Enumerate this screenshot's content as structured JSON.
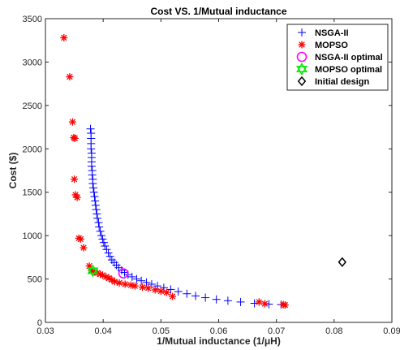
{
  "chart_data": {
    "type": "scatter",
    "title": "Cost VS. 1/Mutual inductance",
    "xlabel": "1/Mutual inductance (1/μH)",
    "ylabel": "Cost ($)",
    "xlim": [
      0.03,
      0.09
    ],
    "ylim": [
      0,
      3500
    ],
    "x_ticks": [
      "0.03",
      "0.04",
      "0.05",
      "0.06",
      "0.07",
      "0.08",
      "0.09"
    ],
    "y_ticks": [
      "0",
      "500",
      "1000",
      "1500",
      "2000",
      "2500",
      "3000",
      "3500"
    ],
    "grid": false,
    "legend_position": "top-right",
    "colors": {
      "nsga": "#0000ff",
      "mopso": "#ff0000",
      "nsga_opt": "#ff00ff",
      "mopso_opt": "#00ee00",
      "initial": "#000000"
    },
    "series": [
      {
        "name": "NSGA-II",
        "marker": "plus",
        "points": [
          [
            0.0378,
            2230
          ],
          [
            0.0379,
            2180
          ],
          [
            0.0379,
            2120
          ],
          [
            0.0379,
            2060
          ],
          [
            0.0379,
            2000
          ],
          [
            0.038,
            1950
          ],
          [
            0.038,
            1900
          ],
          [
            0.038,
            1850
          ],
          [
            0.038,
            1800
          ],
          [
            0.0381,
            1750
          ],
          [
            0.0381,
            1700
          ],
          [
            0.0382,
            1650
          ],
          [
            0.0382,
            1600
          ],
          [
            0.0383,
            1550
          ],
          [
            0.0384,
            1500
          ],
          [
            0.0385,
            1450
          ],
          [
            0.0386,
            1400
          ],
          [
            0.0387,
            1350
          ],
          [
            0.0388,
            1300
          ],
          [
            0.0389,
            1250
          ],
          [
            0.039,
            1200
          ],
          [
            0.0392,
            1150
          ],
          [
            0.0393,
            1100
          ],
          [
            0.0395,
            1050
          ],
          [
            0.0397,
            1000
          ],
          [
            0.0399,
            960
          ],
          [
            0.0401,
            920
          ],
          [
            0.0403,
            880
          ],
          [
            0.0406,
            840
          ],
          [
            0.0409,
            800
          ],
          [
            0.0412,
            760
          ],
          [
            0.0415,
            720
          ],
          [
            0.0419,
            690
          ],
          [
            0.0423,
            660
          ],
          [
            0.0427,
            630
          ],
          [
            0.0432,
            600
          ],
          [
            0.0437,
            575
          ],
          [
            0.0443,
            550
          ],
          [
            0.045,
            525
          ],
          [
            0.0458,
            500
          ],
          [
            0.0466,
            480
          ],
          [
            0.0475,
            460
          ],
          [
            0.0484,
            440
          ],
          [
            0.0494,
            420
          ],
          [
            0.0505,
            400
          ],
          [
            0.0517,
            380
          ],
          [
            0.053,
            355
          ],
          [
            0.0545,
            330
          ],
          [
            0.056,
            305
          ],
          [
            0.0577,
            285
          ],
          [
            0.0596,
            265
          ],
          [
            0.0616,
            250
          ],
          [
            0.0638,
            235
          ],
          [
            0.0662,
            220
          ],
          [
            0.0687,
            210
          ],
          [
            0.0708,
            205
          ]
        ]
      },
      {
        "name": "MOPSO",
        "marker": "asterisk",
        "points": [
          [
            0.0332,
            3280
          ],
          [
            0.0342,
            2830
          ],
          [
            0.0347,
            2310
          ],
          [
            0.0349,
            2130
          ],
          [
            0.0351,
            2120
          ],
          [
            0.035,
            1650
          ],
          [
            0.0352,
            1470
          ],
          [
            0.0355,
            1440
          ],
          [
            0.0358,
            970
          ],
          [
            0.0361,
            960
          ],
          [
            0.0366,
            860
          ],
          [
            0.0376,
            650
          ],
          [
            0.038,
            600
          ],
          [
            0.0385,
            580
          ],
          [
            0.039,
            570
          ],
          [
            0.0395,
            555
          ],
          [
            0.0399,
            545
          ],
          [
            0.0405,
            525
          ],
          [
            0.041,
            510
          ],
          [
            0.0415,
            490
          ],
          [
            0.042,
            470
          ],
          [
            0.0428,
            455
          ],
          [
            0.0438,
            440
          ],
          [
            0.0448,
            430
          ],
          [
            0.0455,
            420
          ],
          [
            0.0468,
            405
          ],
          [
            0.0478,
            395
          ],
          [
            0.049,
            375
          ],
          [
            0.05,
            360
          ],
          [
            0.051,
            345
          ],
          [
            0.052,
            300
          ],
          [
            0.067,
            235
          ],
          [
            0.068,
            215
          ],
          [
            0.0712,
            205
          ],
          [
            0.0715,
            200
          ]
        ]
      },
      {
        "name": "NSGA-II optimal",
        "marker": "circle",
        "points": [
          [
            0.0435,
            565
          ]
        ]
      },
      {
        "name": "MOPSO optimal",
        "marker": "hexagram",
        "points": [
          [
            0.0382,
            595
          ]
        ]
      },
      {
        "name": "Initial design",
        "marker": "diamond",
        "points": [
          [
            0.0814,
            695
          ]
        ]
      }
    ]
  }
}
